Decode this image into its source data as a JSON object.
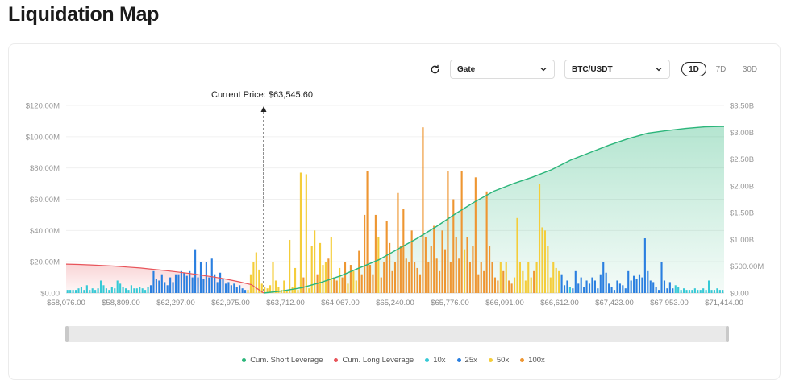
{
  "page": {
    "title": "Liquidation Map"
  },
  "controls": {
    "exchange": "Gate",
    "pair": "BTC/USDT",
    "ranges": [
      {
        "label": "1D",
        "active": true
      },
      {
        "label": "7D",
        "active": false
      },
      {
        "label": "30D",
        "active": false
      }
    ]
  },
  "colors": {
    "short": "#2bb57a",
    "long": "#e8545a",
    "x10": "#35c9d6",
    "x25": "#2a7fe0",
    "x50": "#f4cd3a",
    "x100": "#ee9632"
  },
  "chart_data": {
    "type": "bar",
    "current_price": {
      "label": "Current Price: $63,545.60",
      "value": 63545.6
    },
    "x_ticks": [
      "$58,076.00",
      "$58,809.00",
      "$62,297.00",
      "$62,975.00",
      "$63,712.00",
      "$64,067.00",
      "$65,240.00",
      "$65,776.00",
      "$66,091.00",
      "$66,612.00",
      "$67,423.00",
      "$67,953.00",
      "$71,414.00"
    ],
    "y_left": {
      "ticks": [
        "$0.00",
        "$20.00M",
        "$40.00M",
        "$60.00M",
        "$80.00M",
        "$100.00M",
        "$120.00M"
      ],
      "range": [
        0,
        120
      ]
    },
    "y_right": {
      "ticks": [
        "$0.00",
        "$500.00M",
        "$1.00B",
        "$1.50B",
        "$2.00B",
        "$2.50B",
        "$3.00B",
        "$3.50B"
      ],
      "range": [
        0,
        3.5
      ]
    },
    "bars": [
      [
        "x10",
        2
      ],
      [
        "x10",
        2
      ],
      [
        "x10",
        2
      ],
      [
        "x10",
        2
      ],
      [
        "x10",
        3
      ],
      [
        "x10",
        4
      ],
      [
        "x10",
        2
      ],
      [
        "x10",
        5
      ],
      [
        "x10",
        2
      ],
      [
        "x10",
        3
      ],
      [
        "x10",
        2
      ],
      [
        "x10",
        3
      ],
      [
        "x10",
        8
      ],
      [
        "x10",
        5
      ],
      [
        "x10",
        3
      ],
      [
        "x10",
        2
      ],
      [
        "x10",
        4
      ],
      [
        "x10",
        3
      ],
      [
        "x10",
        8
      ],
      [
        "x10",
        6
      ],
      [
        "x10",
        4
      ],
      [
        "x10",
        3
      ],
      [
        "x10",
        2
      ],
      [
        "x10",
        5
      ],
      [
        "x10",
        3
      ],
      [
        "x10",
        3
      ],
      [
        "x10",
        4
      ],
      [
        "x10",
        3
      ],
      [
        "x10",
        2
      ],
      [
        "x10",
        4
      ],
      [
        "x25",
        5
      ],
      [
        "x25",
        14
      ],
      [
        "x25",
        9
      ],
      [
        "x25",
        8
      ],
      [
        "x25",
        12
      ],
      [
        "x25",
        7
      ],
      [
        "x25",
        5
      ],
      [
        "x25",
        10
      ],
      [
        "x25",
        7
      ],
      [
        "x25",
        12
      ],
      [
        "x25",
        12
      ],
      [
        "x25",
        14
      ],
      [
        "x25",
        13
      ],
      [
        "x25",
        11
      ],
      [
        "x25",
        14
      ],
      [
        "x25",
        10
      ],
      [
        "x25",
        28
      ],
      [
        "x25",
        10
      ],
      [
        "x25",
        20
      ],
      [
        "x25",
        9
      ],
      [
        "x25",
        20
      ],
      [
        "x25",
        10
      ],
      [
        "x25",
        22
      ],
      [
        "x25",
        12
      ],
      [
        "x25",
        7
      ],
      [
        "x25",
        13
      ],
      [
        "x25",
        9
      ],
      [
        "x25",
        6
      ],
      [
        "x25",
        7
      ],
      [
        "x25",
        5
      ],
      [
        "x25",
        6
      ],
      [
        "x25",
        4
      ],
      [
        "x25",
        5
      ],
      [
        "x25",
        3
      ],
      [
        "x25",
        2
      ],
      [
        "x50",
        2
      ],
      [
        "x50",
        12
      ],
      [
        "x50",
        20
      ],
      [
        "x50",
        26
      ],
      [
        "x50",
        15
      ],
      [
        "x50",
        6
      ],
      [
        "x50",
        4
      ],
      [
        "x50",
        3
      ],
      [
        "x50",
        5
      ],
      [
        "x50",
        20
      ],
      [
        "x50",
        8
      ],
      [
        "x50",
        4
      ],
      [
        "x50",
        2
      ],
      [
        "x50",
        8
      ],
      [
        "x50",
        2
      ],
      [
        "x50",
        34
      ],
      [
        "x50",
        4
      ],
      [
        "x50",
        16
      ],
      [
        "x50",
        2
      ],
      [
        "x50",
        77
      ],
      [
        "x100",
        10
      ],
      [
        "x50",
        76
      ],
      [
        "x50",
        3
      ],
      [
        "x50",
        30
      ],
      [
        "x50",
        40
      ],
      [
        "x100",
        12
      ],
      [
        "x50",
        32
      ],
      [
        "x50",
        18
      ],
      [
        "x50",
        20
      ],
      [
        "x100",
        22
      ],
      [
        "x50",
        36
      ],
      [
        "x100",
        10
      ],
      [
        "x100",
        8
      ],
      [
        "x50",
        16
      ],
      [
        "x100",
        10
      ],
      [
        "x100",
        20
      ],
      [
        "x50",
        6
      ],
      [
        "x100",
        18
      ],
      [
        "x50",
        14
      ],
      [
        "x50",
        8
      ],
      [
        "x100",
        27
      ],
      [
        "x100",
        12
      ],
      [
        "x100",
        50
      ],
      [
        "x100",
        78
      ],
      [
        "x100",
        18
      ],
      [
        "x100",
        12
      ],
      [
        "x100",
        50
      ],
      [
        "x50",
        36
      ],
      [
        "x100",
        10
      ],
      [
        "x100",
        20
      ],
      [
        "x100",
        46
      ],
      [
        "x100",
        32
      ],
      [
        "x100",
        14
      ],
      [
        "x100",
        20
      ],
      [
        "x100",
        64
      ],
      [
        "x100",
        30
      ],
      [
        "x100",
        54
      ],
      [
        "x100",
        22
      ],
      [
        "x100",
        20
      ],
      [
        "x100",
        40
      ],
      [
        "x100",
        20
      ],
      [
        "x100",
        16
      ],
      [
        "x100",
        12
      ],
      [
        "x100",
        106
      ],
      [
        "x100",
        36
      ],
      [
        "x100",
        20
      ],
      [
        "x100",
        30
      ],
      [
        "x100",
        43
      ],
      [
        "x100",
        22
      ],
      [
        "x100",
        14
      ],
      [
        "x100",
        40
      ],
      [
        "x100",
        28
      ],
      [
        "x100",
        78
      ],
      [
        "x100",
        20
      ],
      [
        "x100",
        60
      ],
      [
        "x100",
        36
      ],
      [
        "x100",
        22
      ],
      [
        "x100",
        78
      ],
      [
        "x50",
        28
      ],
      [
        "x100",
        36
      ],
      [
        "x100",
        20
      ],
      [
        "x100",
        30
      ],
      [
        "x100",
        74
      ],
      [
        "x100",
        12
      ],
      [
        "x100",
        20
      ],
      [
        "x100",
        14
      ],
      [
        "x100",
        65
      ],
      [
        "x100",
        30
      ],
      [
        "x100",
        20
      ],
      [
        "x100",
        10
      ],
      [
        "x100",
        8
      ],
      [
        "x50",
        20
      ],
      [
        "x100",
        14
      ],
      [
        "x50",
        20
      ],
      [
        "x100",
        8
      ],
      [
        "x100",
        6
      ],
      [
        "x50",
        10
      ],
      [
        "x50",
        48
      ],
      [
        "x50",
        20
      ],
      [
        "x50",
        14
      ],
      [
        "x50",
        8
      ],
      [
        "x50",
        20
      ],
      [
        "x50",
        10
      ],
      [
        "x100",
        14
      ],
      [
        "x50",
        20
      ],
      [
        "x50",
        70
      ],
      [
        "x50",
        42
      ],
      [
        "x50",
        40
      ],
      [
        "x50",
        30
      ],
      [
        "x50",
        10
      ],
      [
        "x50",
        20
      ],
      [
        "x50",
        16
      ],
      [
        "x50",
        14
      ],
      [
        "x25",
        12
      ],
      [
        "x25",
        5
      ],
      [
        "x25",
        8
      ],
      [
        "x10",
        4
      ],
      [
        "x25",
        3
      ],
      [
        "x25",
        14
      ],
      [
        "x25",
        6
      ],
      [
        "x25",
        10
      ],
      [
        "x25",
        4
      ],
      [
        "x25",
        8
      ],
      [
        "x25",
        6
      ],
      [
        "x25",
        10
      ],
      [
        "x25",
        8
      ],
      [
        "x25",
        3
      ],
      [
        "x25",
        12
      ],
      [
        "x25",
        20
      ],
      [
        "x25",
        13
      ],
      [
        "x25",
        6
      ],
      [
        "x25",
        4
      ],
      [
        "x25",
        2
      ],
      [
        "x25",
        8
      ],
      [
        "x25",
        6
      ],
      [
        "x25",
        5
      ],
      [
        "x25",
        3
      ],
      [
        "x25",
        14
      ],
      [
        "x25",
        8
      ],
      [
        "x25",
        11
      ],
      [
        "x25",
        9
      ],
      [
        "x25",
        12
      ],
      [
        "x25",
        10
      ],
      [
        "x25",
        35
      ],
      [
        "x25",
        14
      ],
      [
        "x25",
        8
      ],
      [
        "x25",
        7
      ],
      [
        "x25",
        4
      ],
      [
        "x25",
        2
      ],
      [
        "x25",
        20
      ],
      [
        "x25",
        8
      ],
      [
        "x25",
        3
      ],
      [
        "x25",
        7
      ],
      [
        "x25",
        3
      ],
      [
        "x10",
        5
      ],
      [
        "x10",
        4
      ],
      [
        "x10",
        2
      ],
      [
        "x10",
        3
      ],
      [
        "x10",
        2
      ],
      [
        "x10",
        2
      ],
      [
        "x10",
        2
      ],
      [
        "x10",
        3
      ],
      [
        "x10",
        2
      ],
      [
        "x10",
        2
      ],
      [
        "x10",
        3
      ],
      [
        "x10",
        2
      ],
      [
        "x10",
        8
      ],
      [
        "x10",
        2
      ],
      [
        "x10",
        2
      ],
      [
        "x10",
        3
      ],
      [
        "x10",
        2
      ],
      [
        "x10",
        2
      ]
    ],
    "cum_long": [
      18.5,
      18.3,
      18.0,
      17.6,
      17.2,
      16.6,
      16.0,
      15.2,
      14.4,
      13.5,
      12.5,
      11.4,
      10.2,
      8.8,
      7.2,
      5.4,
      0
    ],
    "cum_short": [
      0.0,
      0.04,
      0.1,
      0.2,
      0.32,
      0.47,
      0.62,
      0.82,
      1.02,
      1.24,
      1.48,
      1.7,
      1.9,
      2.04,
      2.16,
      2.3,
      2.48,
      2.62,
      2.76,
      2.88,
      2.98,
      3.03,
      3.07,
      3.1,
      3.11
    ],
    "legend": [
      "Cum. Short Leverage",
      "Cum. Long Leverage",
      "10x",
      "25x",
      "50x",
      "100x"
    ]
  }
}
